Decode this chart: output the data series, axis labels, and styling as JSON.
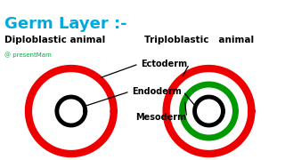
{
  "title": "Germ Layer :-",
  "title_color": "#00AADD",
  "bg_color": "#FFFFFF",
  "label_diplo": "Diploblastic animal",
  "label_triplo": "Triploblastic   animal",
  "watermark": "@ presentMam",
  "labels": [
    "Ectoderm",
    "Endoderm",
    "Mesoderm"
  ],
  "outer_color": "#EE0000",
  "mid_color": "#009900",
  "inner_color": "#000000",
  "outer_lw": 6,
  "mid_lw": 5,
  "inner_lw": 3.5
}
